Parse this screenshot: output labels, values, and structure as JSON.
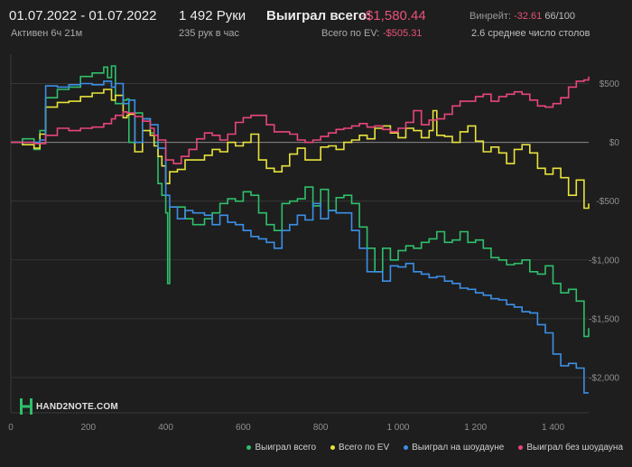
{
  "header": {
    "date_range": "01.07.2022 - 01.07.2022",
    "active": "Активен 6ч 21м",
    "hands": "1 492 Руки",
    "hands_per_hour": "235 рук в час",
    "won_total_label": "Выиграл всего:",
    "won_total_value": "-$1,580.44",
    "ev_label": "Всего по EV:",
    "ev_value": "-$505.31",
    "winrate_label": "Винрейт:",
    "winrate_value": "-32.61",
    "winrate_unit": "66/100",
    "avg_tables": "2.6 среднее число столов"
  },
  "logo": {
    "text": "HAND2NOTE.COM"
  },
  "legend": [
    {
      "label": "Выиграл всего",
      "color": "#2fbf6a"
    },
    {
      "label": "Всего по EV",
      "color": "#e8e23c"
    },
    {
      "label": "Выиграл на шоудауне",
      "color": "#3b8fe6"
    },
    {
      "label": "Выиграл без шоудауна",
      "color": "#e8457c"
    }
  ],
  "colors": {
    "background": "#1e1e1e",
    "grid": "#3a3a3a",
    "zero_line": "#8a8a8a",
    "axis_text": "#8f8f8f"
  },
  "chart_data": {
    "type": "line",
    "xlabel": "",
    "ylabel": "",
    "xlim": [
      0,
      1492
    ],
    "ylim": [
      -2300,
      750
    ],
    "x_ticks": [
      0,
      200,
      400,
      600,
      800,
      1000,
      1200,
      1400
    ],
    "x_tick_labels": [
      "0",
      "200",
      "400",
      "600",
      "800",
      "1 000",
      "1 200",
      "1 400"
    ],
    "y_ticks": [
      500,
      0,
      -500,
      -1000,
      -1500,
      -2000
    ],
    "y_tick_labels": [
      "$500",
      "$0",
      "-$500",
      "-$1,000",
      "-$1,500",
      "-$2,000"
    ],
    "grid": true,
    "legend_position": "bottom-right",
    "series": [
      {
        "name": "Выиграл всего",
        "color": "#2fbf6a",
        "x": [
          0,
          30,
          60,
          75,
          90,
          120,
          150,
          180,
          210,
          240,
          250,
          260,
          270,
          290,
          300,
          305,
          320,
          340,
          360,
          370,
          380,
          390,
          400,
          405,
          410,
          430,
          450,
          470,
          500,
          520,
          540,
          560,
          580,
          600,
          620,
          640,
          660,
          680,
          700,
          720,
          740,
          760,
          780,
          800,
          820,
          840,
          860,
          880,
          900,
          920,
          940,
          960,
          980,
          1000,
          1020,
          1040,
          1060,
          1080,
          1100,
          1120,
          1140,
          1160,
          1180,
          1200,
          1220,
          1240,
          1260,
          1280,
          1300,
          1320,
          1340,
          1360,
          1380,
          1400,
          1420,
          1440,
          1460,
          1480,
          1492
        ],
        "y": [
          0,
          30,
          -60,
          100,
          380,
          450,
          470,
          560,
          590,
          640,
          550,
          650,
          330,
          360,
          370,
          0,
          250,
          200,
          80,
          0,
          -350,
          -450,
          -600,
          -1200,
          -550,
          -550,
          -650,
          -700,
          -650,
          -600,
          -520,
          -480,
          -500,
          -420,
          -450,
          -600,
          -700,
          -750,
          -520,
          -500,
          -480,
          -380,
          -540,
          -400,
          -580,
          -470,
          -450,
          -520,
          -720,
          -900,
          -1100,
          -900,
          -1000,
          -920,
          -880,
          -900,
          -850,
          -820,
          -760,
          -850,
          -830,
          -760,
          -850,
          -830,
          -900,
          -980,
          -1000,
          -1040,
          -1030,
          -1000,
          -1100,
          -1120,
          -1050,
          -1200,
          -1280,
          -1250,
          -1350,
          -1650,
          -1580
        ]
      },
      {
        "name": "Всего по EV",
        "color": "#e8e23c",
        "x": [
          0,
          30,
          60,
          75,
          90,
          120,
          150,
          180,
          210,
          240,
          260,
          270,
          290,
          300,
          305,
          320,
          340,
          360,
          370,
          380,
          390,
          400,
          410,
          430,
          450,
          470,
          500,
          520,
          540,
          560,
          580,
          600,
          620,
          640,
          660,
          680,
          700,
          720,
          740,
          760,
          780,
          800,
          820,
          840,
          860,
          880,
          900,
          920,
          940,
          960,
          980,
          1000,
          1020,
          1040,
          1060,
          1080,
          1090,
          1100,
          1120,
          1140,
          1160,
          1180,
          1200,
          1220,
          1240,
          1260,
          1280,
          1300,
          1320,
          1340,
          1360,
          1380,
          1400,
          1420,
          1440,
          1460,
          1480,
          1492
        ],
        "y": [
          0,
          -20,
          -50,
          70,
          300,
          340,
          350,
          390,
          420,
          450,
          360,
          400,
          210,
          230,
          240,
          -80,
          100,
          60,
          -30,
          -120,
          -200,
          -350,
          -250,
          -230,
          -150,
          -150,
          -110,
          -60,
          -80,
          0,
          -30,
          0,
          70,
          -150,
          -220,
          -250,
          -200,
          -100,
          -50,
          -150,
          -150,
          -40,
          -30,
          -60,
          0,
          20,
          60,
          30,
          120,
          140,
          80,
          40,
          120,
          100,
          40,
          100,
          270,
          60,
          50,
          0,
          90,
          140,
          10,
          -80,
          -40,
          -90,
          -180,
          -60,
          -20,
          -90,
          -220,
          -270,
          -220,
          -300,
          -450,
          -320,
          -560,
          -520
        ]
      },
      {
        "name": "Выиграл на шоудауне",
        "color": "#3b8fe6",
        "x": [
          0,
          60,
          75,
          90,
          120,
          150,
          180,
          210,
          240,
          260,
          270,
          290,
          300,
          305,
          320,
          340,
          360,
          380,
          400,
          410,
          430,
          450,
          470,
          500,
          520,
          540,
          560,
          580,
          600,
          620,
          640,
          660,
          680,
          700,
          720,
          740,
          760,
          780,
          800,
          820,
          840,
          860,
          880,
          900,
          920,
          940,
          960,
          980,
          1000,
          1020,
          1040,
          1060,
          1080,
          1100,
          1120,
          1140,
          1160,
          1180,
          1200,
          1220,
          1240,
          1260,
          1280,
          1300,
          1320,
          1340,
          1360,
          1380,
          1400,
          1420,
          1440,
          1460,
          1480,
          1492
        ],
        "y": [
          0,
          0,
          20,
          480,
          470,
          490,
          500,
          490,
          520,
          470,
          500,
          330,
          330,
          360,
          0,
          200,
          150,
          -50,
          -450,
          -550,
          -650,
          -580,
          -600,
          -620,
          -700,
          -620,
          -680,
          -700,
          -750,
          -800,
          -820,
          -850,
          -900,
          -750,
          -700,
          -620,
          -660,
          -520,
          -650,
          -580,
          -600,
          -600,
          -750,
          -900,
          -1100,
          -1100,
          -1180,
          -1050,
          -1060,
          -1030,
          -1100,
          -1120,
          -1150,
          -1140,
          -1180,
          -1200,
          -1240,
          -1250,
          -1280,
          -1300,
          -1330,
          -1340,
          -1380,
          -1400,
          -1440,
          -1450,
          -1550,
          -1620,
          -1800,
          -1900,
          -1880,
          -1920,
          -2130,
          -2130
        ]
      },
      {
        "name": "Выиграл без шоудауна",
        "color": "#e8457c",
        "x": [
          0,
          30,
          60,
          90,
          120,
          150,
          180,
          210,
          240,
          260,
          270,
          290,
          300,
          305,
          320,
          340,
          360,
          370,
          380,
          400,
          420,
          440,
          460,
          480,
          500,
          520,
          540,
          560,
          580,
          600,
          620,
          640,
          660,
          680,
          700,
          720,
          740,
          760,
          780,
          800,
          820,
          840,
          860,
          880,
          900,
          920,
          940,
          960,
          980,
          1000,
          1020,
          1040,
          1060,
          1080,
          1100,
          1120,
          1140,
          1160,
          1180,
          1200,
          1220,
          1240,
          1260,
          1280,
          1300,
          1320,
          1340,
          1360,
          1380,
          1400,
          1420,
          1440,
          1460,
          1480,
          1492
        ],
        "y": [
          0,
          0,
          -10,
          60,
          120,
          100,
          120,
          130,
          160,
          200,
          230,
          260,
          250,
          250,
          220,
          180,
          120,
          60,
          20,
          -150,
          -180,
          -120,
          -60,
          30,
          80,
          60,
          20,
          70,
          170,
          210,
          230,
          230,
          150,
          90,
          90,
          70,
          20,
          0,
          20,
          50,
          80,
          110,
          120,
          140,
          160,
          130,
          140,
          110,
          90,
          120,
          170,
          270,
          150,
          190,
          200,
          240,
          310,
          350,
          350,
          390,
          410,
          350,
          390,
          410,
          430,
          410,
          360,
          310,
          300,
          330,
          380,
          470,
          520,
          530,
          560
        ]
      }
    ]
  }
}
